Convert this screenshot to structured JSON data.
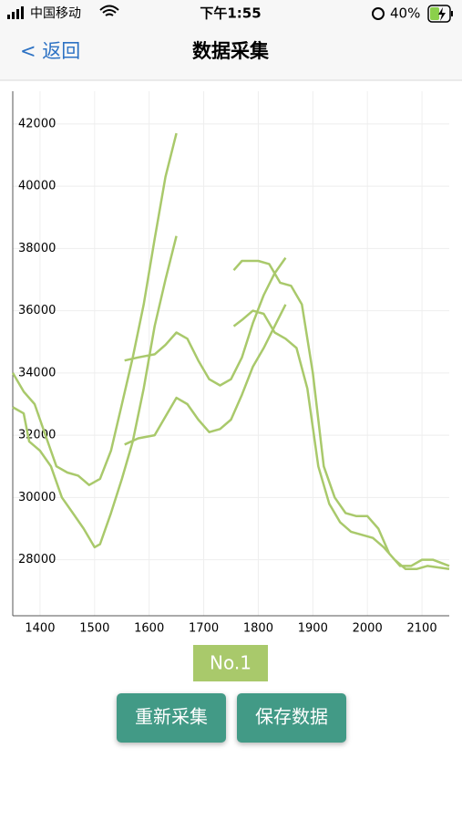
{
  "status_bar": {
    "carrier": "中国移动",
    "time": "下午1:55",
    "battery": "40%"
  },
  "nav": {
    "back": "< 返回",
    "title": "数据采集"
  },
  "chart_data": {
    "type": "line",
    "xlim": [
      1350,
      2150
    ],
    "xticks": [
      1400,
      1500,
      1600,
      1700,
      1800,
      1900,
      2000,
      2100
    ],
    "ylim": [
      26200,
      43050
    ],
    "yticks": [
      28000,
      30000,
      32000,
      34000,
      36000,
      38000,
      40000,
      42000
    ],
    "grid": true,
    "legend": "bottom",
    "series": [
      {
        "name": "No.1",
        "color": "#a9c96b",
        "x": [
          1350,
          1370,
          1380,
          1400,
          1420,
          1440,
          1460,
          1480,
          1500,
          1510,
          1530,
          1550,
          1570,
          1590,
          1610,
          1630,
          1650,
          null,
          1350,
          1370,
          1390,
          1410,
          1430,
          1450,
          1470,
          1490,
          1510,
          1530,
          1550,
          1570,
          1590,
          1610,
          1630,
          1650,
          null,
          1555,
          1580,
          1610,
          1630,
          1650,
          1670,
          1690,
          1710,
          1730,
          1750,
          1770,
          1790,
          1810,
          1830,
          1850,
          null,
          1555,
          1580,
          1610,
          1630,
          1650,
          1670,
          1690,
          1710,
          1730,
          1750,
          1770,
          1790,
          1810,
          1830,
          1850,
          null,
          1755,
          1770,
          1800,
          1820,
          1840,
          1860,
          1880,
          1900,
          1920,
          1940,
          1960,
          1980,
          2000,
          2020,
          2040,
          2060,
          2080,
          2100,
          2120,
          2150,
          null,
          1755,
          1770,
          1790,
          1810,
          1830,
          1850,
          1870,
          1890,
          1910,
          1930,
          1950,
          1970,
          1990,
          2010,
          2030,
          2050,
          2070,
          2090,
          2110,
          2150
        ],
        "values": [
          32900,
          32700,
          31800,
          31500,
          31000,
          30000,
          29500,
          29000,
          28400,
          28500,
          29500,
          30600,
          31800,
          33500,
          35500,
          37000,
          38400,
          null,
          34000,
          33400,
          33000,
          32000,
          31000,
          30800,
          30700,
          30400,
          30600,
          31500,
          33000,
          34500,
          36200,
          38300,
          40300,
          41700,
          null,
          34400,
          34500,
          34600,
          34900,
          35300,
          35100,
          34400,
          33800,
          33600,
          33800,
          34500,
          35600,
          36500,
          37200,
          37700,
          null,
          31700,
          31900,
          32000,
          32600,
          33200,
          33000,
          32500,
          32100,
          32200,
          32500,
          33300,
          34200,
          34800,
          35500,
          36200,
          null,
          37300,
          37600,
          37600,
          37500,
          36900,
          36800,
          36200,
          34000,
          31000,
          30000,
          29500,
          29400,
          29400,
          29000,
          28200,
          27800,
          27800,
          28000,
          28000,
          27800,
          null,
          35500,
          35700,
          36000,
          35900,
          35300,
          35100,
          34800,
          33500,
          31000,
          29800,
          29200,
          28900,
          28800,
          28700,
          28400,
          28000,
          27700,
          27700,
          27800,
          27700
        ]
      }
    ]
  },
  "buttons": [
    "重新采集",
    "保存数据"
  ]
}
